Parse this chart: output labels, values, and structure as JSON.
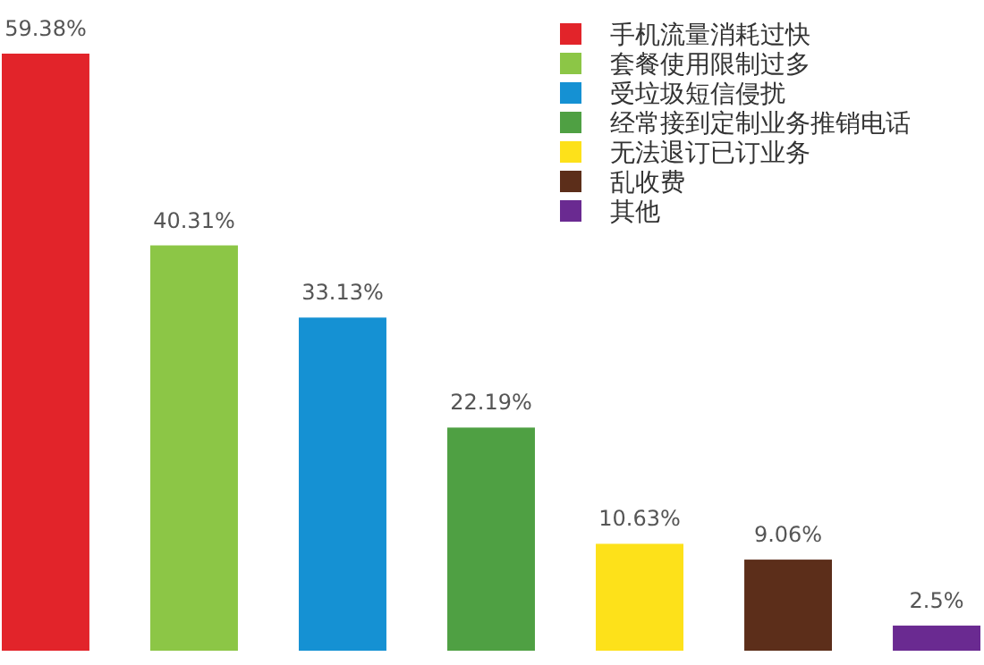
{
  "chart_data": {
    "type": "bar",
    "categories": [
      null,
      null,
      null,
      null,
      null,
      null,
      null
    ],
    "stacked": true,
    "legend": "top right",
    "series": [
      {
        "name": "手机流量消耗过快",
        "color": "#e2242a",
        "values": [
          59.38,
          null,
          null,
          null,
          null,
          null,
          null
        ],
        "value_labels": [
          "59.38%",
          null,
          null,
          null,
          null,
          null,
          null
        ]
      },
      {
        "name": "套餐使用限制过多",
        "color": "#8cc646",
        "values": [
          null,
          40.31,
          null,
          null,
          null,
          null,
          null
        ],
        "value_labels": [
          null,
          "40.31%",
          null,
          null,
          null,
          null,
          null
        ]
      },
      {
        "name": "受垃圾短信侵扰",
        "color": "#1591d3",
        "values": [
          null,
          null,
          33.13,
          null,
          null,
          null,
          null
        ],
        "value_labels": [
          null,
          null,
          "33.13%",
          null,
          null,
          null,
          null
        ]
      },
      {
        "name": "经常接到定制业务推销电话",
        "color": "#4fa043",
        "values": [
          null,
          null,
          null,
          22.19,
          null,
          null,
          null
        ],
        "value_labels": [
          null,
          null,
          null,
          "22.19%",
          null,
          null,
          null
        ]
      },
      {
        "name": "无法退订已订业务",
        "color": "#fde11a",
        "values": [
          null,
          null,
          null,
          null,
          10.63,
          null,
          null
        ],
        "value_labels": [
          null,
          null,
          null,
          null,
          "10.63%",
          null,
          null
        ]
      },
      {
        "name": "乱收费",
        "color": "#5c2e1a",
        "values": [
          null,
          null,
          null,
          null,
          null,
          9.06,
          null
        ],
        "value_labels": [
          null,
          null,
          null,
          null,
          null,
          "9.06%",
          null
        ]
      },
      {
        "name": "其他",
        "color": "#6a2a91",
        "values": [
          null,
          null,
          null,
          null,
          null,
          null,
          2.5
        ],
        "value_labels": [
          null,
          null,
          null,
          null,
          null,
          null,
          "2.5%"
        ]
      }
    ]
  }
}
